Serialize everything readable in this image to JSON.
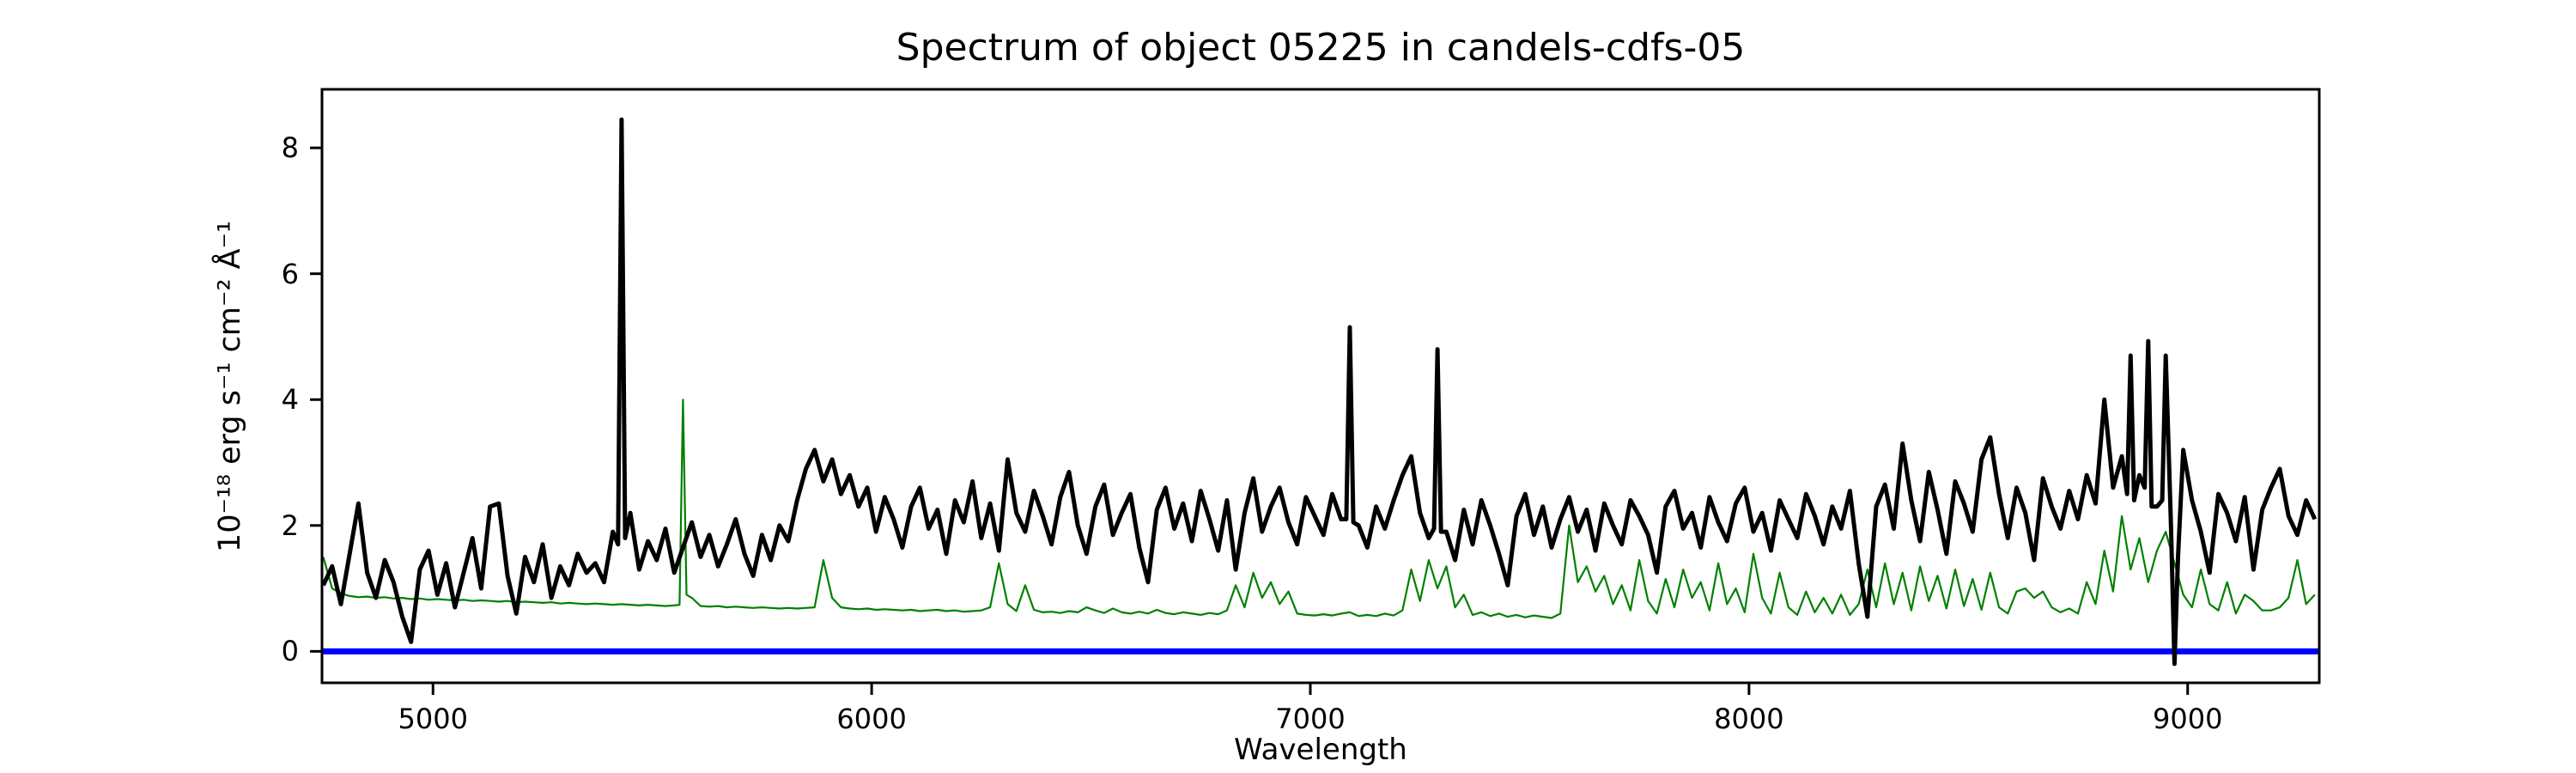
{
  "chart": {
    "title": "Spectrum of object 05225 in candels-cdfs-05",
    "xlabel": "Wavelength",
    "ylabel": "10⁻¹⁸ erg s⁻¹ cm⁻² Å⁻¹"
  },
  "chart_data": {
    "type": "line",
    "title": "Spectrum of object 05225 in candels-cdfs-05",
    "xlabel": "Wavelength",
    "ylabel": "10^-18 erg s^-1 cm^-2 A^-1",
    "xlim": [
      4747,
      9300
    ],
    "ylim": [
      -0.5,
      8.93
    ],
    "xticks": [
      5000,
      6000,
      7000,
      8000,
      9000
    ],
    "yticks": [
      0,
      2,
      4,
      6,
      8
    ],
    "grid": false,
    "legend": null,
    "x_start": 4750,
    "x_step": 20,
    "series": [
      {
        "name": "zero",
        "type": "hline",
        "y": 0,
        "color": "#0000ff",
        "linewidth": 7
      },
      {
        "name": "noise",
        "type": "line",
        "color": "#008000",
        "linewidth": 2.2,
        "values": [
          1.5,
          1.0,
          0.92,
          0.88,
          0.86,
          0.87,
          0.85,
          0.86,
          0.84,
          0.85,
          0.83,
          0.84,
          0.82,
          0.83,
          0.82,
          0.81,
          0.82,
          0.8,
          0.81,
          0.8,
          0.79,
          0.8,
          0.78,
          0.79,
          0.78,
          0.77,
          0.78,
          0.76,
          0.77,
          0.76,
          0.75,
          0.76,
          0.75,
          0.74,
          0.75,
          0.74,
          0.73,
          0.74,
          0.73,
          0.72,
          0.73,
          4.0,
          0.85,
          0.72,
          0.71,
          0.72,
          0.7,
          0.71,
          0.7,
          0.69,
          0.7,
          0.69,
          0.68,
          0.69,
          0.68,
          0.69,
          0.7,
          1.45,
          0.85,
          0.7,
          0.68,
          0.67,
          0.68,
          0.66,
          0.67,
          0.66,
          0.65,
          0.66,
          0.64,
          0.65,
          0.66,
          0.64,
          0.65,
          0.63,
          0.64,
          0.65,
          0.7,
          1.4,
          0.75,
          0.64,
          1.05,
          0.66,
          0.62,
          0.63,
          0.61,
          0.64,
          0.62,
          0.7,
          0.65,
          0.61,
          0.68,
          0.62,
          0.6,
          0.63,
          0.6,
          0.66,
          0.61,
          0.59,
          0.62,
          0.6,
          0.58,
          0.61,
          0.59,
          0.65,
          1.05,
          0.7,
          1.25,
          0.85,
          1.1,
          0.75,
          0.95,
          0.6,
          0.58,
          0.57,
          0.59,
          0.57,
          0.6,
          0.62,
          0.56,
          0.58,
          0.56,
          0.6,
          0.57,
          0.65,
          1.3,
          0.8,
          1.45,
          1.0,
          1.35,
          0.7,
          0.9,
          0.58,
          0.62,
          0.56,
          0.6,
          0.55,
          0.58,
          0.54,
          0.57,
          0.55,
          0.53,
          0.6,
          2.0,
          1.1,
          1.35,
          0.95,
          1.2,
          0.75,
          1.05,
          0.65,
          1.45,
          0.8,
          0.6,
          1.15,
          0.7,
          1.3,
          0.85,
          1.1,
          0.65,
          1.4,
          0.75,
          1.0,
          0.62,
          1.55,
          0.85,
          0.6,
          1.25,
          0.7,
          0.58,
          0.95,
          0.62,
          0.85,
          0.6,
          0.9,
          0.58,
          0.75,
          1.3,
          0.7,
          1.4,
          0.75,
          1.25,
          0.65,
          1.35,
          0.8,
          1.2,
          0.68,
          1.3,
          0.72,
          1.15,
          0.66,
          1.25,
          0.7,
          0.6,
          0.95,
          1.0,
          0.85,
          0.95,
          0.7,
          0.62,
          0.68,
          0.6,
          1.1,
          0.75,
          1.6,
          0.95,
          2.15,
          1.3,
          1.8,
          1.1,
          1.6,
          1.9,
          1.4,
          0.9,
          0.7,
          1.3,
          0.75,
          0.65,
          1.1,
          0.6,
          0.9,
          0.8,
          0.65,
          0.65,
          0.7,
          0.85,
          1.45,
          0.75,
          0.9
        ],
        "extra_points": [
          [
            5562,
            0.74
          ],
          [
            5578,
            0.9
          ]
        ]
      },
      {
        "name": "flux",
        "type": "line",
        "color": "#000000",
        "linewidth": 5,
        "values": [
          1.05,
          1.35,
          0.75,
          1.55,
          2.35,
          1.25,
          0.85,
          1.45,
          1.1,
          0.55,
          0.15,
          1.3,
          1.6,
          0.9,
          1.4,
          0.7,
          1.25,
          1.8,
          1.0,
          2.3,
          2.35,
          1.2,
          0.6,
          1.5,
          1.1,
          1.7,
          0.85,
          1.35,
          1.05,
          1.55,
          1.25,
          1.4,
          1.1,
          1.9,
          8.45,
          2.2,
          1.3,
          1.75,
          1.45,
          1.95,
          1.25,
          1.65,
          2.05,
          1.5,
          1.85,
          1.35,
          1.7,
          2.1,
          1.55,
          1.2,
          1.85,
          1.45,
          2.0,
          1.75,
          2.4,
          2.9,
          3.2,
          2.7,
          3.05,
          2.5,
          2.8,
          2.3,
          2.6,
          1.9,
          2.45,
          2.1,
          1.65,
          2.3,
          2.6,
          1.95,
          2.25,
          1.55,
          2.4,
          2.05,
          2.7,
          1.8,
          2.35,
          1.6,
          3.05,
          2.2,
          1.9,
          2.55,
          2.15,
          1.7,
          2.45,
          2.85,
          2.0,
          1.55,
          2.3,
          2.65,
          1.85,
          2.2,
          2.5,
          1.65,
          1.1,
          2.25,
          2.6,
          1.95,
          2.35,
          1.75,
          2.55,
          2.1,
          1.6,
          2.4,
          1.3,
          2.2,
          2.75,
          1.9,
          2.3,
          2.6,
          2.05,
          1.7,
          2.45,
          2.15,
          1.85,
          2.5,
          2.1,
          5.15,
          2.0,
          1.65,
          2.3,
          1.95,
          2.4,
          2.8,
          3.1,
          2.2,
          1.8,
          4.8,
          1.9,
          1.45,
          2.25,
          1.7,
          2.4,
          2.0,
          1.55,
          1.05,
          2.15,
          2.5,
          1.85,
          2.3,
          1.65,
          2.1,
          2.45,
          1.9,
          2.25,
          1.6,
          2.35,
          2.0,
          1.7,
          2.4,
          2.15,
          1.85,
          1.25,
          2.3,
          2.55,
          1.95,
          2.2,
          1.65,
          2.45,
          2.05,
          1.75,
          2.35,
          2.6,
          1.9,
          2.2,
          1.6,
          2.4,
          2.1,
          1.8,
          2.5,
          2.15,
          1.7,
          2.3,
          1.95,
          2.55,
          1.4,
          0.55,
          2.3,
          2.65,
          1.95,
          3.3,
          2.4,
          1.75,
          2.85,
          2.25,
          1.55,
          2.7,
          2.35,
          1.9,
          3.05,
          3.4,
          2.5,
          1.8,
          2.6,
          2.2,
          1.45,
          2.75,
          2.3,
          1.95,
          2.55,
          2.1,
          2.8,
          2.35,
          4.0,
          2.6,
          3.1,
          4.7,
          2.8,
          4.93,
          2.3,
          4.7,
          -0.2,
          3.2,
          2.4,
          1.9,
          1.25,
          2.5,
          2.2,
          1.75,
          2.45,
          1.3,
          2.25,
          2.6,
          2.9,
          2.15,
          1.85,
          2.4,
          2.1
        ],
        "extra_points": [
          [
            5422,
            1.7
          ],
          [
            5438,
            1.8
          ],
          [
            7082,
            2.1
          ],
          [
            7098,
            2.05
          ],
          [
            7282,
            1.95
          ],
          [
            7298,
            1.9
          ],
          [
            8862,
            2.5
          ],
          [
            8878,
            2.4
          ],
          [
            8902,
            2.6
          ],
          [
            8918,
            2.3
          ],
          [
            8942,
            2.4
          ],
          [
            8962,
            2.0
          ],
          [
            8978,
            1.5
          ]
        ]
      }
    ]
  }
}
